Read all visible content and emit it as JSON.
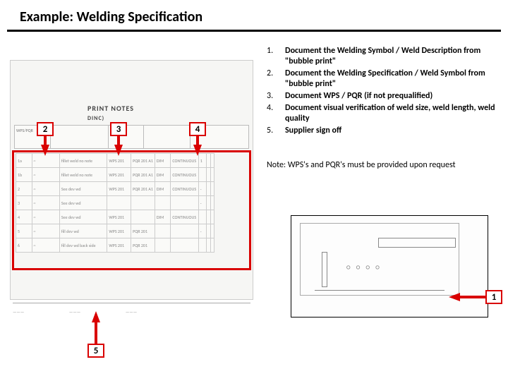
{
  "title": "Example: Welding Specification",
  "callouts": {
    "c1": "1",
    "c2": "2",
    "c3": "3",
    "c4": "4",
    "c5": "5"
  },
  "instructions": [
    {
      "num": "1.",
      "text": "Document the Welding Symbol / Weld Description from \"bubble print\""
    },
    {
      "num": "2.",
      "text": "Document the Welding Specification / Weld Symbol from \"bubble print\""
    },
    {
      "num": "3.",
      "text": "Document WPS / PQR (if not prequalified)"
    },
    {
      "num": "4.",
      "text": "Document visual verification of weld size, weld length, weld quality"
    },
    {
      "num": "5.",
      "text": "Supplier sign off"
    }
  ],
  "note": "Note: WPS's and PQR's must be provided upon request",
  "doc": {
    "header": "PRINT NOTES",
    "subheader": "DINC)",
    "footer": [
      "———",
      "———",
      "———",
      "———"
    ],
    "grid_labels": [
      "WPS/PQR",
      "",
      "",
      ""
    ],
    "row_cells": [
      [
        "1a",
        "~",
        "fillet weld no note",
        "WPS 201",
        "PQR 201 A1",
        "DIM",
        "CONTINUOUS",
        "1",
        "",
        ""
      ],
      [
        "1b",
        "~",
        "fillet weld no note",
        "WPS 201",
        "PQR 201 A1",
        "DIM",
        "CONTINUOUS",
        "",
        "",
        ""
      ],
      [
        "2",
        "~",
        "See dev wd",
        "WPS 201",
        "PQR 201 A1",
        "DIM",
        "CONTINUOUS",
        "-",
        "",
        ""
      ],
      [
        "3",
        "~",
        "See dev wd",
        "",
        "",
        "",
        "",
        "-",
        "",
        ""
      ],
      [
        "4",
        "~",
        "See dev wd",
        "WPS 201",
        "",
        "DIM",
        "CONTINUOUS",
        "",
        "",
        ""
      ],
      [
        "5",
        "~",
        "fill dev wd",
        "WPS 201",
        "PQR 201",
        "",
        "",
        "-",
        "",
        ""
      ],
      [
        "6",
        "~",
        "fill dev wd back side",
        "WPS 201",
        "PQR 201",
        "",
        "",
        "",
        "",
        ""
      ]
    ]
  },
  "colors": {
    "accent": "#d90000",
    "text": "#000000",
    "bg": "#ffffff"
  }
}
